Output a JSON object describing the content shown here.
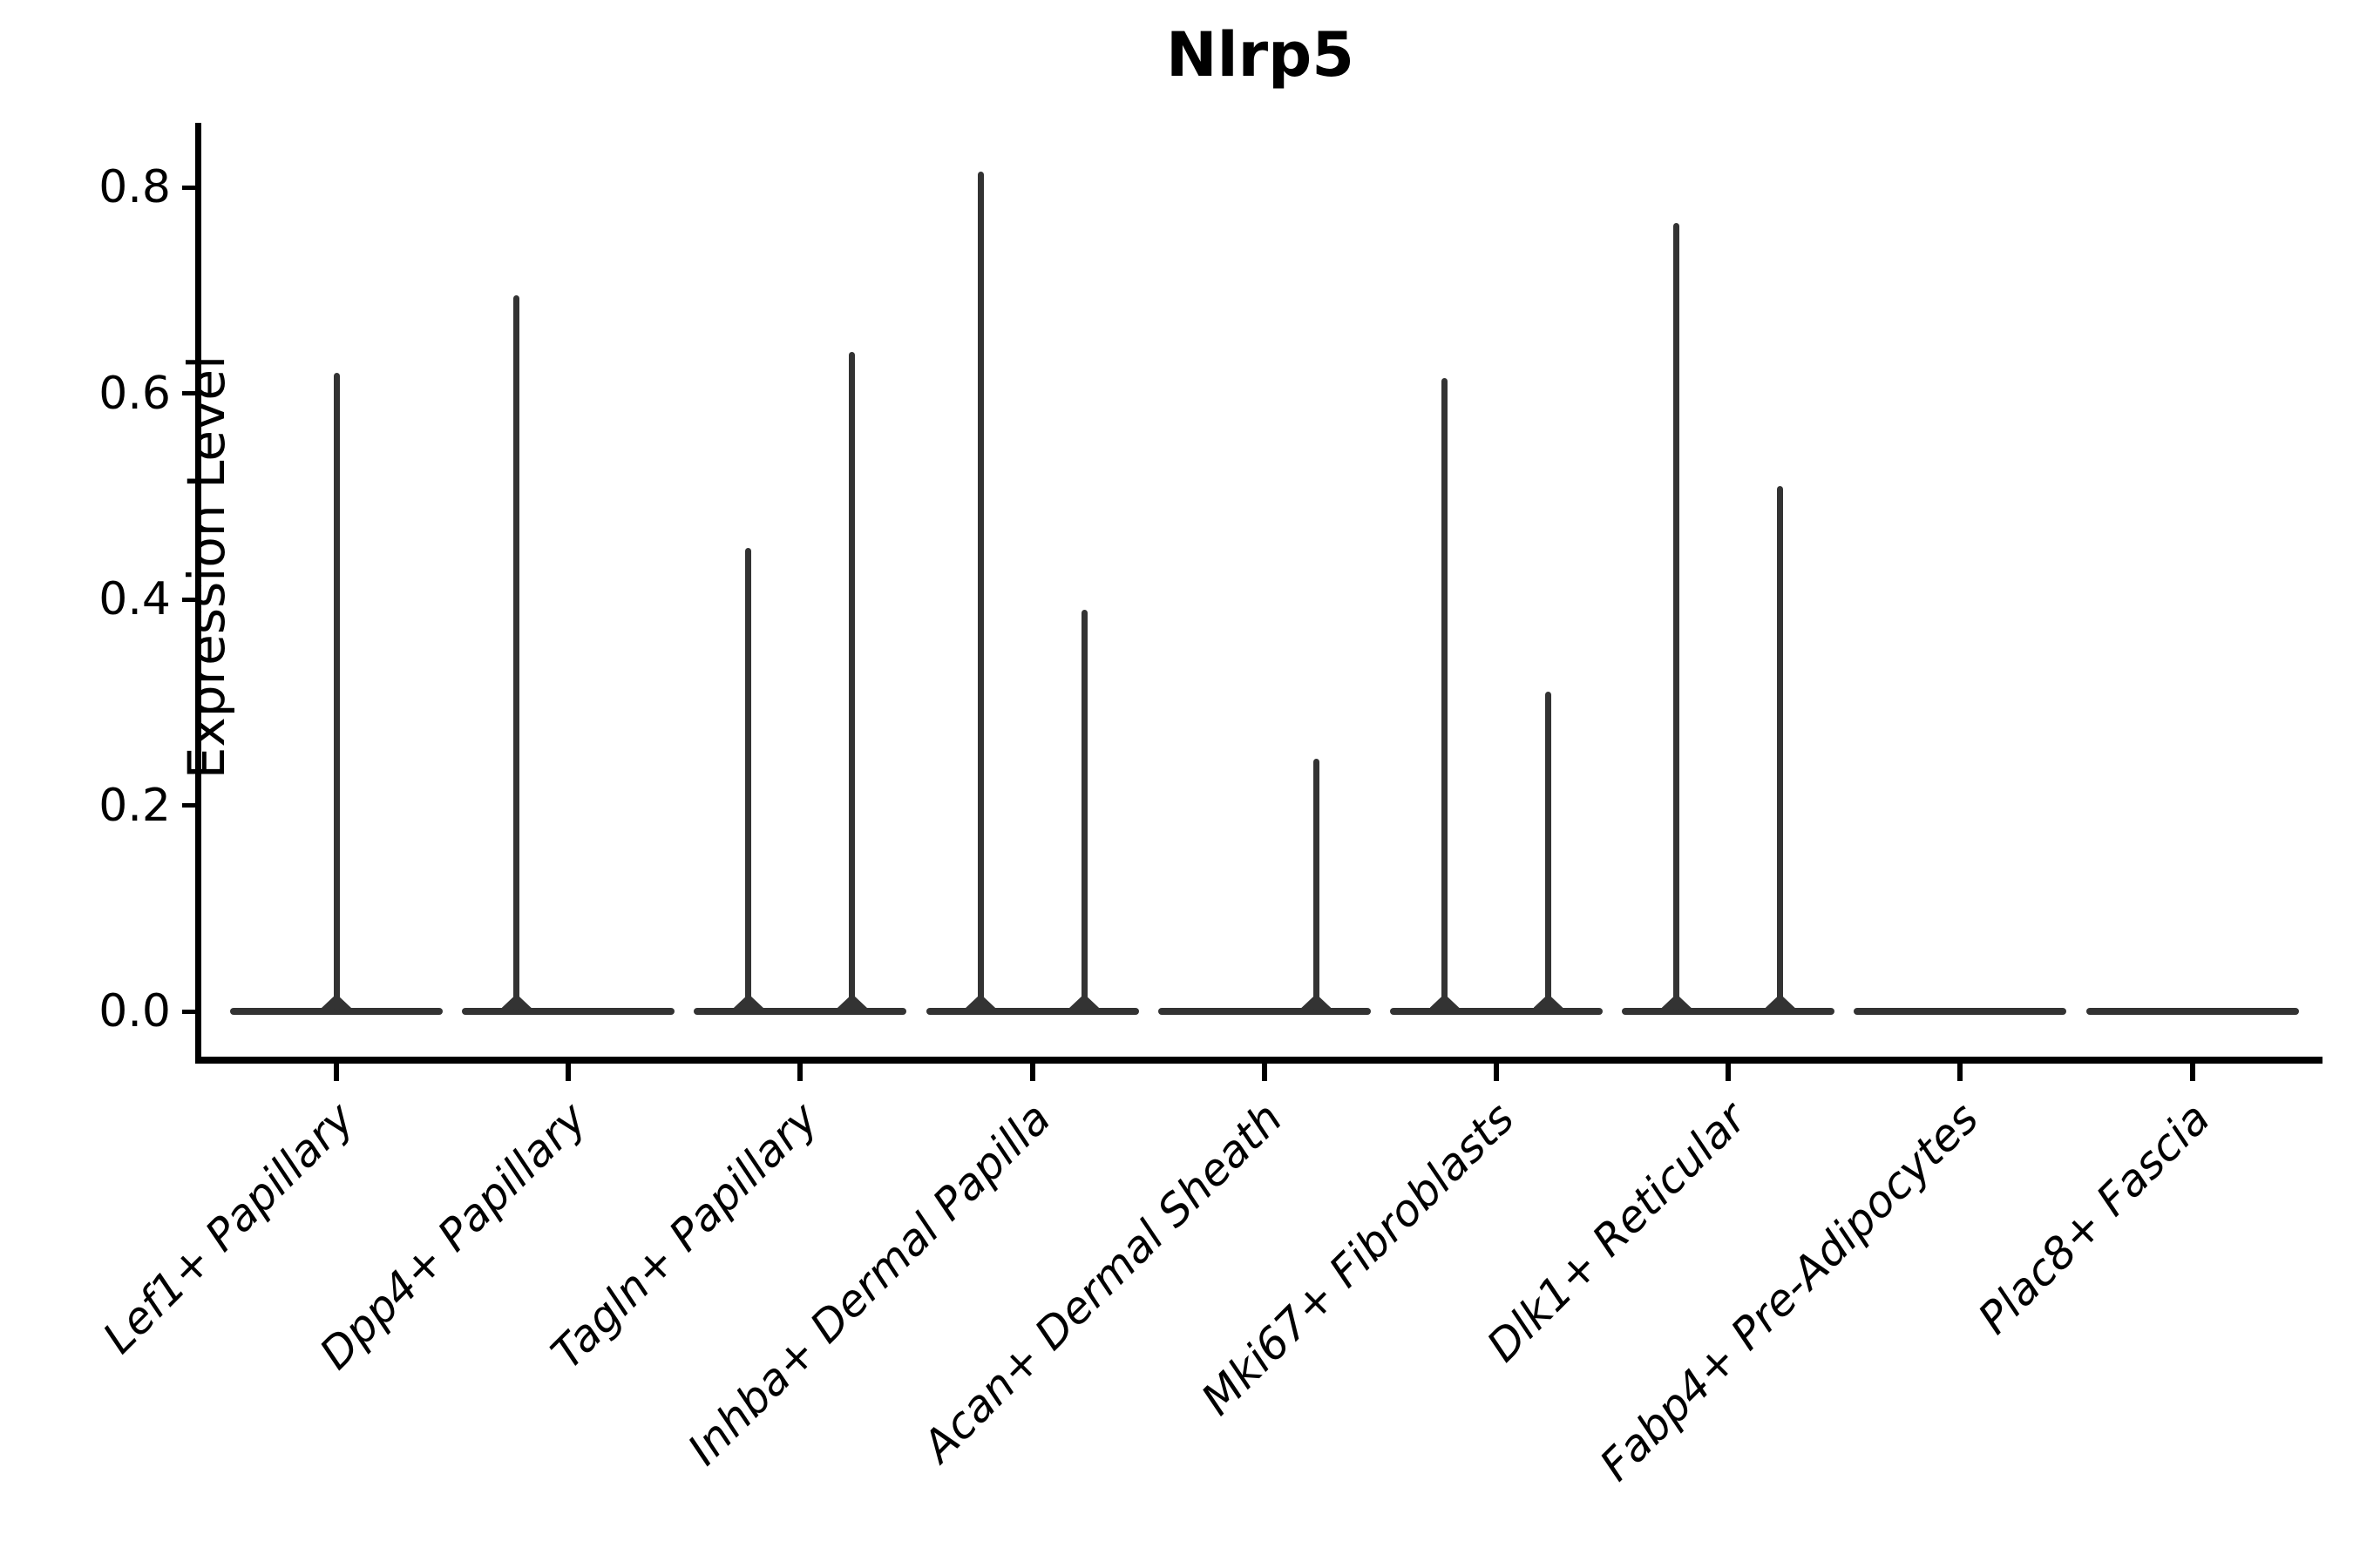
{
  "title": "Nlrp5",
  "y_axis": {
    "label": "Expression Level",
    "tick_labels": [
      "0.0",
      "0.2",
      "0.4",
      "0.6",
      "0.8"
    ]
  },
  "chart_data": {
    "type": "violin",
    "title": "Nlrp5",
    "xlabel": "",
    "ylabel": "Expression Level",
    "ylim": [
      -0.045,
      0.864
    ],
    "yticks": [
      0.0,
      0.2,
      0.4,
      0.6,
      0.8
    ],
    "grid": false,
    "legend_position": "none",
    "categories": [
      "Lef1+ Papillary",
      "Dpp4+ Papillary",
      "Tagln+ Papillary",
      "Inhba+ Dermal Papilla",
      "Acan+ Dermal Sheath",
      "Mki67+ Fibroblasts",
      "Dlk1+ Reticular",
      "Fabp4+ Pre-Adipocytes",
      "Plac8+ Fascia"
    ],
    "violins": [
      {
        "category": "Lef1+ Papillary",
        "zero_base": true,
        "spikes": [
          {
            "position": "center",
            "value": 0.62
          }
        ]
      },
      {
        "category": "Dpp4+ Papillary",
        "zero_base": true,
        "spikes": [
          {
            "position": "left",
            "value": 0.695
          }
        ]
      },
      {
        "category": "Tagln+ Papillary",
        "zero_base": true,
        "spikes": [
          {
            "position": "left",
            "value": 0.45
          },
          {
            "position": "right",
            "value": 0.64
          }
        ]
      },
      {
        "category": "Inhba+ Dermal Papilla",
        "zero_base": true,
        "spikes": [
          {
            "position": "left",
            "value": 0.815
          },
          {
            "position": "right",
            "value": 0.39
          }
        ]
      },
      {
        "category": "Acan+ Dermal Sheath",
        "zero_base": true,
        "spikes": [
          {
            "position": "right",
            "value": 0.245
          }
        ]
      },
      {
        "category": "Mki67+ Fibroblasts",
        "zero_base": true,
        "spikes": [
          {
            "position": "left",
            "value": 0.615
          },
          {
            "position": "right",
            "value": 0.31
          }
        ]
      },
      {
        "category": "Dlk1+ Reticular",
        "zero_base": true,
        "spikes": [
          {
            "position": "left",
            "value": 0.765
          },
          {
            "position": "right",
            "value": 0.51
          }
        ]
      },
      {
        "category": "Fabp4+ Pre-Adipocytes",
        "zero_base": true,
        "spikes": []
      },
      {
        "category": "Plac8+ Fascia",
        "zero_base": true,
        "spikes": []
      }
    ],
    "colors": {
      "violin_ink": "#333333",
      "axis": "#000000",
      "text": "#000000",
      "background": "#ffffff"
    }
  }
}
